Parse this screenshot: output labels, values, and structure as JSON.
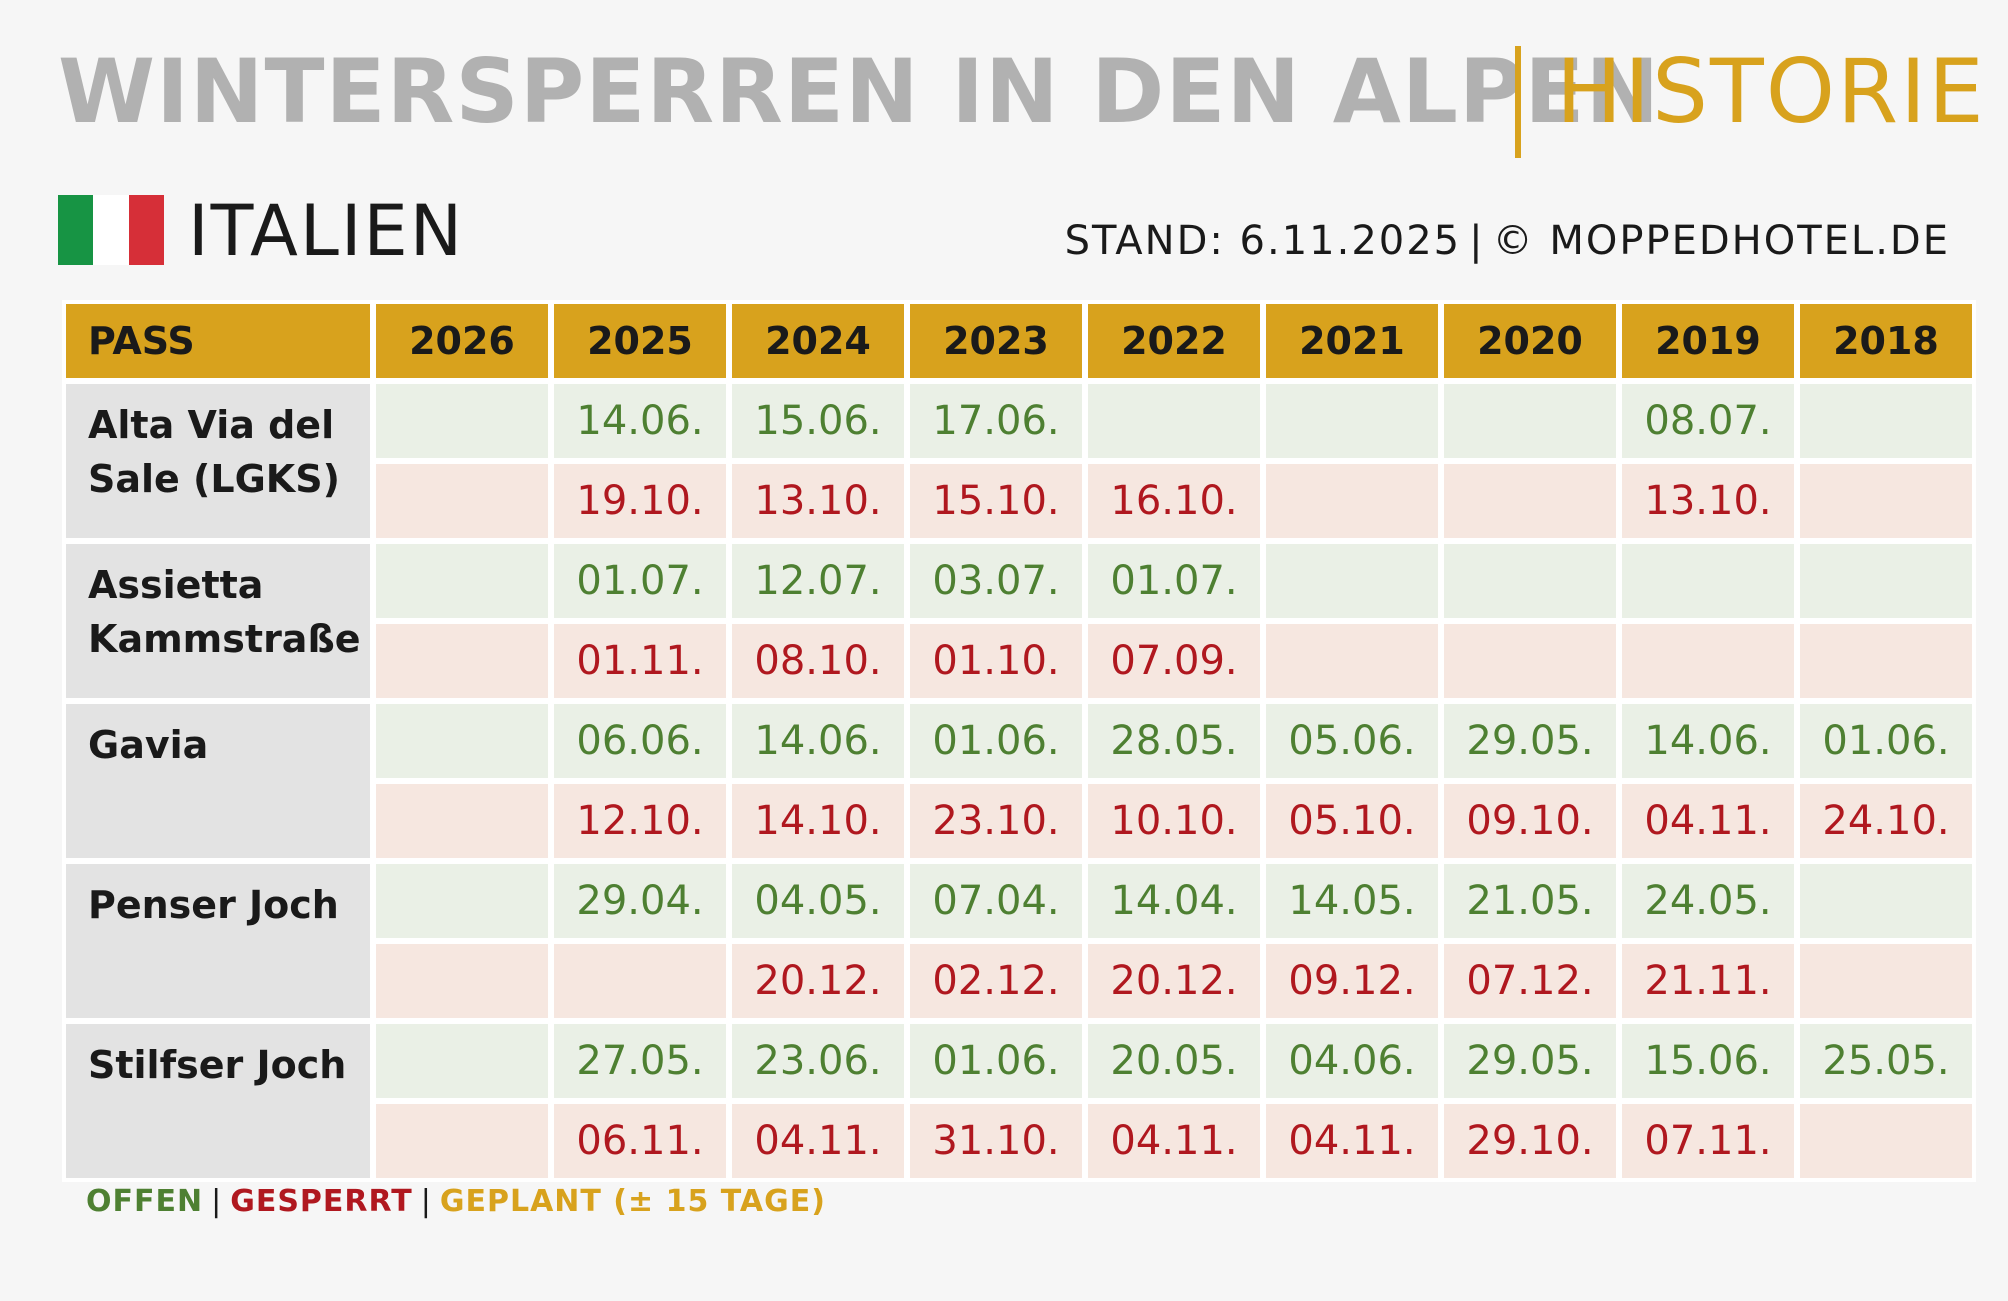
{
  "header": {
    "title": "WINTERSPERREN IN DEN ALPEN",
    "accent": "HISTORIE",
    "country": "ITALIEN",
    "stand": "STAND: 6.11.2025",
    "copyright": "© MOPPEDHOTEL.DE",
    "flag_colors": [
      "#179444",
      "#ffffff",
      "#d62f38"
    ]
  },
  "table": {
    "columns": [
      "PASS",
      "2026",
      "2025",
      "2024",
      "2023",
      "2022",
      "2021",
      "2020",
      "2019",
      "2018"
    ],
    "passes": [
      {
        "name": "Alta Via del Sale (LGKS)",
        "open": [
          "",
          "14.06.",
          "15.06.",
          "17.06.",
          "",
          "",
          "",
          "08.07.",
          ""
        ],
        "closed": [
          "",
          "19.10.",
          "13.10.",
          "15.10.",
          "16.10.",
          "",
          "",
          "13.10.",
          ""
        ]
      },
      {
        "name": "Assietta Kammstraße",
        "open": [
          "",
          "01.07.",
          "12.07.",
          "03.07.",
          "01.07.",
          "",
          "",
          "",
          ""
        ],
        "closed": [
          "",
          "01.11.",
          "08.10.",
          "01.10.",
          "07.09.",
          "",
          "",
          "",
          ""
        ]
      },
      {
        "name": "Gavia",
        "open": [
          "",
          "06.06.",
          "14.06.",
          "01.06.",
          "28.05.",
          "05.06.",
          "29.05.",
          "14.06.",
          "01.06."
        ],
        "closed": [
          "",
          "12.10.",
          "14.10.",
          "23.10.",
          "10.10.",
          "05.10.",
          "09.10.",
          "04.11.",
          "24.10."
        ]
      },
      {
        "name": "Penser Joch",
        "open": [
          "",
          "29.04.",
          "04.05.",
          "07.04.",
          "14.04.",
          "14.05.",
          "21.05.",
          "24.05.",
          ""
        ],
        "closed": [
          "",
          "",
          "20.12.",
          "02.12.",
          "20.12.",
          "09.12.",
          "07.12.",
          "21.11.",
          ""
        ]
      },
      {
        "name": "Stilfser Joch",
        "open": [
          "",
          "27.05.",
          "23.06.",
          "01.06.",
          "20.05.",
          "04.06.",
          "29.05.",
          "15.06.",
          "25.05."
        ],
        "closed": [
          "",
          "06.11.",
          "04.11.",
          "31.10.",
          "04.11.",
          "04.11.",
          "29.10.",
          "07.11.",
          ""
        ]
      }
    ]
  },
  "legend": {
    "open": "OFFEN",
    "closed": "GESPERRT",
    "planned": "GEPLANT (± 15 TAGE)"
  },
  "colors": {
    "accent": "#d8a21d",
    "open_text": "#4e8032",
    "closed_text": "#b0181f",
    "open_bg": "#eaf0e6",
    "closed_bg": "#f6e7e0"
  }
}
